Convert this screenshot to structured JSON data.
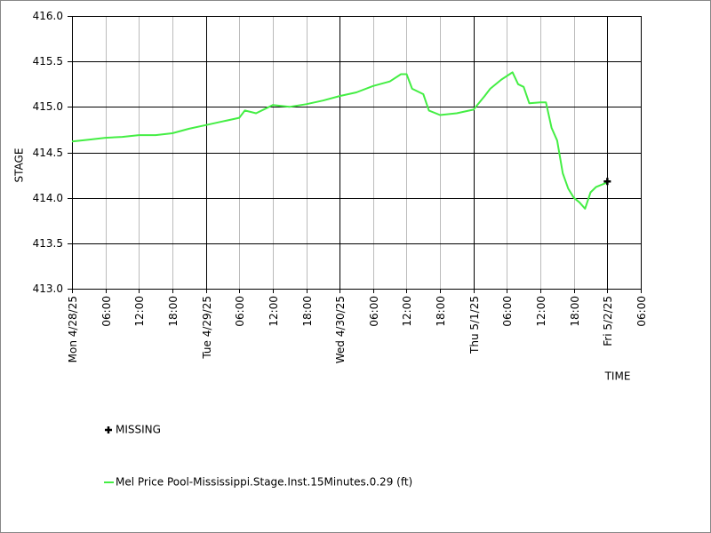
{
  "chart_data": {
    "type": "line",
    "x_label": "TIME",
    "y_label": "STAGE",
    "xlim": [
      "4/28/25 00:00",
      "5/2/25 06:00"
    ],
    "xticks": [
      {
        "value": "4/28/25 00:00",
        "label": "Mon 4/28/25"
      },
      {
        "value": "4/28/25 06:00",
        "label": "06:00"
      },
      {
        "value": "4/28/25 12:00",
        "label": "12:00"
      },
      {
        "value": "4/28/25 18:00",
        "label": "18:00"
      },
      {
        "value": "4/29/25 00:00",
        "label": "Tue 4/29/25"
      },
      {
        "value": "4/29/25 06:00",
        "label": "06:00"
      },
      {
        "value": "4/29/25 12:00",
        "label": "12:00"
      },
      {
        "value": "4/29/25 18:00",
        "label": "18:00"
      },
      {
        "value": "4/30/25 00:00",
        "label": "Wed 4/30/25"
      },
      {
        "value": "4/30/25 06:00",
        "label": "06:00"
      },
      {
        "value": "4/30/25 12:00",
        "label": "12:00"
      },
      {
        "value": "4/30/25 18:00",
        "label": "18:00"
      },
      {
        "value": "5/1/25 00:00",
        "label": "Thu 5/1/25"
      },
      {
        "value": "5/1/25 06:00",
        "label": "06:00"
      },
      {
        "value": "5/1/25 12:00",
        "label": "12:00"
      },
      {
        "value": "5/1/25 18:00",
        "label": "18:00"
      },
      {
        "value": "5/2/25 00:00",
        "label": "Fri 5/2/25"
      },
      {
        "value": "5/2/25 06:00",
        "label": "06:00"
      }
    ],
    "ylim": [
      413,
      416
    ],
    "yticks": [
      {
        "value": 413,
        "label": "413.0"
      },
      {
        "value": 413.5,
        "label": "413.5"
      },
      {
        "value": 414,
        "label": "414.0"
      },
      {
        "value": 414.5,
        "label": "414.5"
      },
      {
        "value": 415,
        "label": "415.0"
      },
      {
        "value": 415.5,
        "label": "415.5"
      },
      {
        "value": 416,
        "label": "416.0"
      }
    ],
    "grid": true,
    "series": [
      {
        "name": "Mel Price Pool-Mississippi.Stage.Inst.15Minutes.0.29 (ft)",
        "color": "#44ee44",
        "x": [
          "4/28/25 00:00",
          "4/28/25 03:00",
          "4/28/25 06:00",
          "4/28/25 09:00",
          "4/28/25 12:00",
          "4/28/25 15:00",
          "4/28/25 18:00",
          "4/28/25 21:00",
          "4/29/25 00:00",
          "4/29/25 03:00",
          "4/29/25 06:00",
          "4/29/25 07:00",
          "4/29/25 09:00",
          "4/29/25 12:00",
          "4/29/25 15:00",
          "4/29/25 18:00",
          "4/29/25 21:00",
          "4/30/25 00:00",
          "4/30/25 03:00",
          "4/30/25 06:00",
          "4/30/25 09:00",
          "4/30/25 11:00",
          "4/30/25 12:00",
          "4/30/25 13:00",
          "4/30/25 15:00",
          "4/30/25 16:00",
          "4/30/25 18:00",
          "4/30/25 21:00",
          "5/1/25 00:00",
          "5/1/25 02:00",
          "5/1/25 03:00",
          "5/1/25 05:00",
          "5/1/25 07:00",
          "5/1/25 08:00",
          "5/1/25 09:00",
          "5/1/25 10:00",
          "5/1/25 12:00",
          "5/1/25 13:00",
          "5/1/25 14:00",
          "5/1/25 15:00",
          "5/1/25 16:00",
          "5/1/25 17:00",
          "5/1/25 18:00",
          "5/1/25 19:00",
          "5/1/25 20:00",
          "5/1/25 21:00",
          "5/1/25 22:00",
          "5/2/25 00:00"
        ],
        "values": [
          414.62,
          414.64,
          414.66,
          414.67,
          414.69,
          414.69,
          414.71,
          414.76,
          414.8,
          414.84,
          414.88,
          414.96,
          414.93,
          415.02,
          415.0,
          415.03,
          415.07,
          415.12,
          415.16,
          415.23,
          415.28,
          415.36,
          415.36,
          415.2,
          415.14,
          414.96,
          414.91,
          414.93,
          414.97,
          415.12,
          415.2,
          415.3,
          415.38,
          415.25,
          415.22,
          415.04,
          415.05,
          415.05,
          414.77,
          414.63,
          414.27,
          414.1,
          414.0,
          413.95,
          413.88,
          414.06,
          414.12,
          414.17
        ]
      },
      {
        "name": "MISSING",
        "color": "#000000",
        "marker": "+",
        "x": [
          "5/2/25 00:00"
        ],
        "values": [
          414.18
        ]
      }
    ]
  }
}
